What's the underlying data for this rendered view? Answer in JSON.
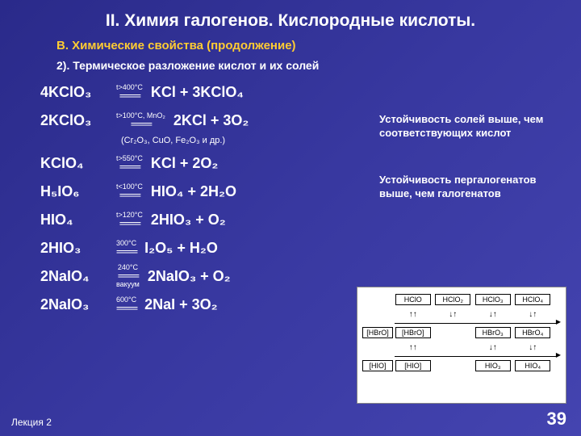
{
  "title": "II. Химия галогенов. Кислородные кислоты.",
  "subtitle": "В. Химические свойства (продолжение)",
  "sectionnum": "2). Термическое разложение кислот и их солей",
  "eqs": [
    {
      "lhs": "4KClO₃",
      "cond": "t>400°C",
      "cond2": "",
      "rhs": "KCl + 3KClO₄"
    },
    {
      "lhs": "2KClO₃",
      "cond": "t>100°C, MnO₂",
      "cond2": "",
      "rhs": "2KCl + 3O₂"
    }
  ],
  "note": "(Cr₂O₃, CuO, Fe₂O₃ и др.)",
  "eqs2": [
    {
      "lhs": "KClO₄",
      "cond": "t>550°C",
      "cond2": "",
      "rhs": "KCl + 2O₂"
    },
    {
      "lhs": "H₅IO₆",
      "cond": "t<100°C",
      "cond2": "",
      "rhs": "HIO₄ + 2H₂O"
    },
    {
      "lhs": "HIO₄",
      "cond": "t>120°C",
      "cond2": "",
      "rhs": "2HIO₃ + O₂"
    },
    {
      "lhs": "2HIO₃",
      "cond": "300°C",
      "cond2": "",
      "rhs": "I₂O₅ + H₂O"
    },
    {
      "lhs": "2NaIO₄",
      "cond": "240°C",
      "cond2": "вакуум",
      "rhs": "2NaIO₃ + O₂"
    },
    {
      "lhs": "2NaIO₃",
      "cond": "600°C",
      "cond2": "",
      "rhs": "2NaI + 3O₂"
    }
  ],
  "side1": "Устойчивость солей выше, чем соответствующих кислот",
  "side2": "Устойчивость пергалогенатов выше, чем галогенатов",
  "diagram": {
    "r1": [
      "HClO",
      "HClO₂",
      "HClO₃",
      "HClO₄"
    ],
    "a1": [
      "↑↑",
      "↓↑",
      "↓↑",
      "↓↑"
    ],
    "r2": [
      "[HBrO]",
      "",
      "HBrO₃",
      "HBrO₄"
    ],
    "a2": [
      "↑↑",
      "",
      "↓↑",
      "↓↑"
    ],
    "r3": [
      "[HIO]",
      "",
      "HIO₃",
      "HIO₄"
    ]
  },
  "footer_l": "Лекция 2",
  "footer_r": "39"
}
